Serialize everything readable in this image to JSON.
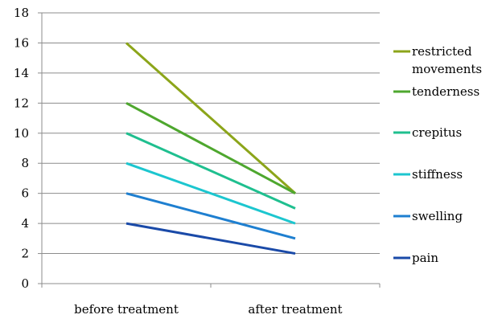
{
  "chart_data": {
    "type": "line",
    "categories": [
      "before treatment",
      "after treatment"
    ],
    "series": [
      {
        "name": "restricted movements",
        "label_lines": [
          "restricted",
          "movements"
        ],
        "values": [
          16,
          6
        ],
        "color": "#8ca51a"
      },
      {
        "name": "tenderness",
        "label_lines": [
          "tenderness"
        ],
        "values": [
          12,
          6
        ],
        "color": "#4ea72e"
      },
      {
        "name": "crepitus",
        "label_lines": [
          "crepitus"
        ],
        "values": [
          10,
          5
        ],
        "color": "#1fbf8f"
      },
      {
        "name": "stiffness",
        "label_lines": [
          "stiffness"
        ],
        "values": [
          8,
          4
        ],
        "color": "#1cc6cf"
      },
      {
        "name": "swelling",
        "label_lines": [
          "swelling"
        ],
        "values": [
          6,
          3
        ],
        "color": "#1e7fd0"
      },
      {
        "name": "pain",
        "label_lines": [
          "pain"
        ],
        "values": [
          4,
          2
        ],
        "color": "#1a4aa8"
      }
    ],
    "ylim": [
      0,
      18
    ],
    "yticks": [
      0,
      2,
      4,
      6,
      8,
      10,
      12,
      14,
      16,
      18
    ],
    "grid": true,
    "legend_position": "right",
    "title": "",
    "xlabel": "",
    "ylabel": ""
  }
}
